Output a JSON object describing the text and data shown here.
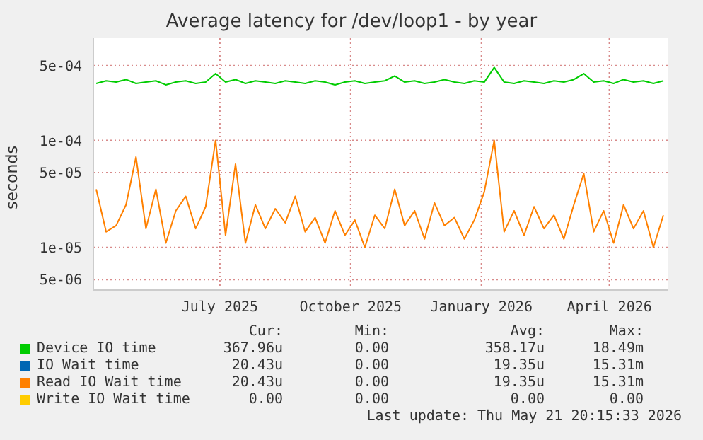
{
  "chart_data": {
    "type": "line",
    "title": "Average latency for /dev/loop1 - by year",
    "ylabel": "seconds",
    "log": "y",
    "grid": true,
    "legend": "bottom",
    "marker": "none",
    "x": [
      "2025-04-05",
      "2025-04-12",
      "2025-04-19",
      "2025-04-26",
      "2025-05-03",
      "2025-05-10",
      "2025-05-17",
      "2025-05-24",
      "2025-05-31",
      "2025-06-07",
      "2025-06-14",
      "2025-06-21",
      "2025-06-28",
      "2025-07-05",
      "2025-07-12",
      "2025-07-19",
      "2025-07-26",
      "2025-08-02",
      "2025-08-09",
      "2025-08-16",
      "2025-08-23",
      "2025-08-30",
      "2025-09-06",
      "2025-09-13",
      "2025-09-20",
      "2025-09-27",
      "2025-10-04",
      "2025-10-11",
      "2025-10-18",
      "2025-10-25",
      "2025-11-01",
      "2025-11-08",
      "2025-11-15",
      "2025-11-22",
      "2025-11-29",
      "2025-12-06",
      "2025-12-13",
      "2025-12-20",
      "2025-12-27",
      "2026-01-03",
      "2026-01-10",
      "2026-01-17",
      "2026-01-24",
      "2026-01-31",
      "2026-02-07",
      "2026-02-14",
      "2026-02-21",
      "2026-02-28",
      "2026-03-07",
      "2026-03-14",
      "2026-03-21",
      "2026-03-28",
      "2026-04-04",
      "2026-04-11",
      "2026-04-18",
      "2026-04-25",
      "2026-05-02",
      "2026-05-09"
    ],
    "xlim": [
      "2025-04-03",
      "2026-05-12"
    ],
    "xticks": [
      {
        "value": "2025-07-01",
        "label": "July 2025"
      },
      {
        "value": "2025-10-01",
        "label": "October 2025"
      },
      {
        "value": "2026-01-01",
        "label": "January 2026"
      },
      {
        "value": "2026-04-01",
        "label": "April 2026"
      }
    ],
    "ylim": [
      4e-06,
      0.0009
    ],
    "yticks": [
      {
        "value": 5e-06,
        "label": "5e-06"
      },
      {
        "value": 1e-05,
        "label": "1e-05"
      },
      {
        "value": 5e-05,
        "label": "5e-05"
      },
      {
        "value": 0.0001,
        "label": "1e-04"
      },
      {
        "value": 0.0005,
        "label": "5e-04"
      }
    ],
    "series": [
      {
        "name": "Device IO time",
        "color": "#00cc00",
        "values": [
          0.00034,
          0.00036,
          0.00035,
          0.00037,
          0.00034,
          0.00035,
          0.00036,
          0.00033,
          0.00035,
          0.00036,
          0.00034,
          0.00035,
          0.00042,
          0.00035,
          0.00037,
          0.00034,
          0.00036,
          0.00035,
          0.00034,
          0.00036,
          0.00035,
          0.00034,
          0.00036,
          0.00035,
          0.00033,
          0.00035,
          0.00036,
          0.00034,
          0.00035,
          0.00036,
          0.0004,
          0.00035,
          0.00036,
          0.00034,
          0.00035,
          0.00037,
          0.00035,
          0.00034,
          0.00036,
          0.00035,
          0.00048,
          0.00035,
          0.00034,
          0.00036,
          0.00035,
          0.00034,
          0.00036,
          0.00035,
          0.00037,
          0.00042,
          0.00035,
          0.00036,
          0.00034,
          0.00037,
          0.00035,
          0.00036,
          0.00034,
          0.00036
        ]
      },
      {
        "name": "IO Wait time",
        "color": "#0066b3",
        "values": [
          null,
          null,
          null,
          null,
          null,
          null,
          null,
          null,
          null,
          null,
          null,
          null,
          null,
          null,
          null,
          null,
          null,
          null,
          null,
          null,
          null,
          null,
          null,
          null,
          null,
          null,
          null,
          null,
          null,
          null,
          null,
          null,
          null,
          null,
          null,
          null,
          null,
          null,
          null,
          null,
          null,
          null,
          null,
          null,
          null,
          null,
          null,
          null,
          null,
          null,
          null,
          null,
          null,
          null,
          null,
          null,
          null,
          null
        ]
      },
      {
        "name": "Read IO Wait time",
        "color": "#ff8000",
        "values": [
          3.5e-05,
          1.4e-05,
          1.6e-05,
          2.5e-05,
          7e-05,
          1.5e-05,
          3.5e-05,
          1.1e-05,
          2.2e-05,
          3e-05,
          1.5e-05,
          2.4e-05,
          0.0001,
          1.3e-05,
          6e-05,
          1.1e-05,
          2.5e-05,
          1.5e-05,
          2.3e-05,
          1.7e-05,
          3e-05,
          1.4e-05,
          1.9e-05,
          1.1e-05,
          2.2e-05,
          1.3e-05,
          1.8e-05,
          1e-05,
          2e-05,
          1.5e-05,
          3.5e-05,
          1.6e-05,
          2.2e-05,
          1.2e-05,
          2.6e-05,
          1.6e-05,
          1.9e-05,
          1.2e-05,
          1.8e-05,
          3.3e-05,
          0.0001,
          1.4e-05,
          2.2e-05,
          1.3e-05,
          2.4e-05,
          1.5e-05,
          2e-05,
          1.2e-05,
          2.5e-05,
          4.9e-05,
          1.4e-05,
          2.2e-05,
          1.1e-05,
          2.5e-05,
          1.5e-05,
          2.2e-05,
          1e-05,
          2e-05
        ]
      },
      {
        "name": "Write IO Wait time",
        "color": "#ffcc00",
        "values": [
          null,
          null,
          null,
          null,
          null,
          null,
          null,
          null,
          null,
          null,
          null,
          null,
          null,
          null,
          null,
          null,
          null,
          null,
          null,
          null,
          null,
          null,
          null,
          null,
          null,
          null,
          null,
          null,
          null,
          null,
          null,
          null,
          null,
          null,
          null,
          null,
          null,
          null,
          null,
          null,
          null,
          null,
          null,
          null,
          null,
          null,
          null,
          null,
          null,
          null,
          null,
          null,
          null,
          null,
          null,
          null,
          null,
          null
        ]
      }
    ],
    "annotations": [
      "Cur:",
      "Min:",
      "Avg:",
      "Max:",
      "367.96u",
      "0.00",
      "358.17u",
      "18.49m",
      "20.43u",
      "0.00",
      "19.35u",
      "15.31m",
      "20.43u",
      "0.00",
      "19.35u",
      "15.31m",
      "0.00",
      "0.00",
      "0.00",
      "0.00",
      "Last update: Thu May 21 20:15:33 2026"
    ]
  }
}
